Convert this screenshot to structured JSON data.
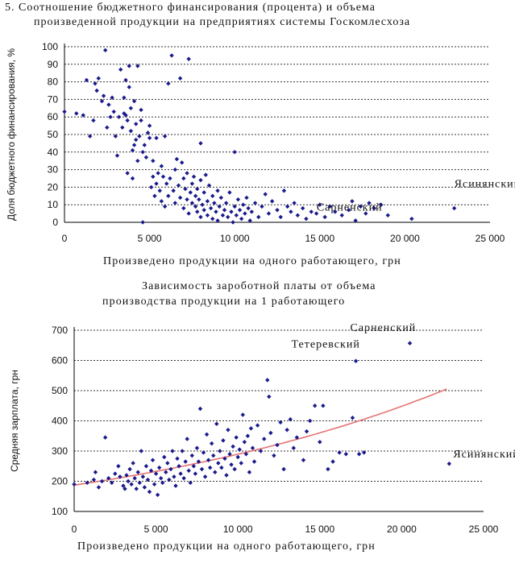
{
  "chart_data": [
    {
      "type": "scatter",
      "title_line1": "5. Соотношение  бюджетного финансирования (процента) и  объема",
      "title_line2": "произведенной продукции на предприятиях системы Госкомлесхоза",
      "xlabel": "Произведено продукции на одного работающего, грн",
      "ylabel": "Доля бюджетного финансирования, %",
      "xlim": [
        0,
        25000
      ],
      "ylim": [
        0,
        100
      ],
      "x_ticks": [
        0,
        5000,
        10000,
        15000,
        20000,
        25000
      ],
      "x_tick_labels": [
        "0",
        "5 000",
        "10 000",
        "15 000",
        "20 000",
        "25 000"
      ],
      "y_ticks": [
        0,
        10,
        20,
        30,
        40,
        50,
        60,
        70,
        80,
        90,
        100
      ],
      "y_tick_labels": [
        "0",
        "10",
        "20",
        "30",
        "40",
        "50",
        "60",
        "70",
        "80",
        "90",
        "100"
      ],
      "grid": "horizontal dashed",
      "marker_color": "#1a1a8c",
      "annotations": [
        {
          "text": "Ясинянский",
          "x": 22900,
          "y": 8
        },
        {
          "text": "Сарненский",
          "x": 20400,
          "y": 2
        }
      ],
      "points": [
        [
          0,
          63
        ],
        [
          700,
          62
        ],
        [
          1100,
          61
        ],
        [
          1300,
          81
        ],
        [
          1500,
          49
        ],
        [
          1700,
          58
        ],
        [
          1800,
          79
        ],
        [
          1900,
          75
        ],
        [
          2000,
          82
        ],
        [
          2200,
          69
        ],
        [
          2300,
          72
        ],
        [
          2400,
          98
        ],
        [
          2500,
          54
        ],
        [
          2600,
          67
        ],
        [
          2700,
          60
        ],
        [
          2800,
          71
        ],
        [
          2900,
          63
        ],
        [
          3000,
          49
        ],
        [
          3100,
          38
        ],
        [
          3200,
          60
        ],
        [
          3300,
          87
        ],
        [
          3400,
          54
        ],
        [
          3500,
          62
        ],
        [
          3500,
          71
        ],
        [
          3600,
          61
        ],
        [
          3600,
          81
        ],
        [
          3700,
          58
        ],
        [
          3700,
          28
        ],
        [
          3800,
          77
        ],
        [
          3800,
          89
        ],
        [
          3900,
          52
        ],
        [
          3900,
          65
        ],
        [
          4000,
          41
        ],
        [
          4000,
          25
        ],
        [
          4100,
          44
        ],
        [
          4100,
          69
        ],
        [
          4200,
          47
        ],
        [
          4200,
          56
        ],
        [
          4300,
          35
        ],
        [
          4300,
          89
        ],
        [
          4400,
          49
        ],
        [
          4500,
          58
        ],
        [
          4500,
          64
        ],
        [
          4600,
          40
        ],
        [
          4600,
          0
        ],
        [
          4700,
          44
        ],
        [
          4800,
          37
        ],
        [
          4900,
          51
        ],
        [
          5000,
          48
        ],
        [
          5000,
          55
        ],
        [
          5100,
          20
        ],
        [
          5200,
          26
        ],
        [
          5200,
          35
        ],
        [
          5300,
          15
        ],
        [
          5400,
          22
        ],
        [
          5400,
          48
        ],
        [
          5500,
          28
        ],
        [
          5600,
          18
        ],
        [
          5700,
          12
        ],
        [
          5700,
          32
        ],
        [
          5800,
          26
        ],
        [
          5900,
          9
        ],
        [
          5900,
          49
        ],
        [
          6000,
          22
        ],
        [
          6100,
          15
        ],
        [
          6100,
          79
        ],
        [
          6200,
          25
        ],
        [
          6300,
          95
        ],
        [
          6400,
          18
        ],
        [
          6500,
          11
        ],
        [
          6500,
          30
        ],
        [
          6600,
          36
        ],
        [
          6700,
          21
        ],
        [
          6800,
          14
        ],
        [
          6800,
          82
        ],
        [
          6900,
          34
        ],
        [
          7000,
          8
        ],
        [
          7000,
          25
        ],
        [
          7100,
          19
        ],
        [
          7200,
          13
        ],
        [
          7200,
          28
        ],
        [
          7300,
          5
        ],
        [
          7300,
          93
        ],
        [
          7400,
          17
        ],
        [
          7500,
          11
        ],
        [
          7500,
          22
        ],
        [
          7600,
          26
        ],
        [
          7700,
          9
        ],
        [
          7700,
          15
        ],
        [
          7800,
          19
        ],
        [
          7800,
          6
        ],
        [
          7900,
          13
        ],
        [
          8000,
          3
        ],
        [
          8000,
          24
        ],
        [
          8000,
          45
        ],
        [
          8100,
          10
        ],
        [
          8200,
          17
        ],
        [
          8200,
          7
        ],
        [
          8300,
          27
        ],
        [
          8400,
          12
        ],
        [
          8400,
          4
        ],
        [
          8500,
          21
        ],
        [
          8600,
          8
        ],
        [
          8700,
          15
        ],
        [
          8700,
          2
        ],
        [
          8800,
          11
        ],
        [
          8900,
          6
        ],
        [
          9000,
          18
        ],
        [
          9000,
          1
        ],
        [
          9100,
          9
        ],
        [
          9200,
          14
        ],
        [
          9300,
          4
        ],
        [
          9400,
          7
        ],
        [
          9500,
          11
        ],
        [
          9600,
          3
        ],
        [
          9700,
          17
        ],
        [
          9800,
          6
        ],
        [
          9900,
          0
        ],
        [
          10000,
          9
        ],
        [
          10000,
          40
        ],
        [
          10100,
          4
        ],
        [
          10200,
          13
        ],
        [
          10300,
          7
        ],
        [
          10400,
          2
        ],
        [
          10500,
          10
        ],
        [
          10600,
          5
        ],
        [
          10700,
          14
        ],
        [
          10800,
          8
        ],
        [
          10900,
          1
        ],
        [
          11000,
          6
        ],
        [
          11200,
          11
        ],
        [
          11400,
          3
        ],
        [
          11600,
          9
        ],
        [
          11800,
          16
        ],
        [
          12000,
          5
        ],
        [
          12200,
          12
        ],
        [
          12500,
          7
        ],
        [
          12700,
          3
        ],
        [
          12900,
          18
        ],
        [
          13100,
          9
        ],
        [
          13300,
          6
        ],
        [
          13500,
          11
        ],
        [
          13700,
          4
        ],
        [
          14000,
          8
        ],
        [
          14200,
          2
        ],
        [
          14500,
          6
        ],
        [
          14800,
          5
        ],
        [
          15000,
          10
        ],
        [
          15300,
          3
        ],
        [
          15600,
          9
        ],
        [
          15900,
          6
        ],
        [
          16300,
          4
        ],
        [
          16700,
          7
        ],
        [
          16900,
          12
        ],
        [
          17100,
          1
        ],
        [
          17400,
          9
        ],
        [
          17700,
          5
        ],
        [
          17900,
          11
        ],
        [
          18200,
          8
        ],
        [
          18600,
          10
        ],
        [
          19000,
          4
        ],
        [
          20400,
          2
        ],
        [
          22900,
          8
        ]
      ]
    },
    {
      "type": "scatter",
      "title_line1": "Зависимость зароботной платы от объема",
      "title_line2": "производства продукции  на 1 работающего",
      "xlabel": "Произведено продукции на одного работающего, грн",
      "ylabel": "Средняя зарплата, грн",
      "xlim": [
        0,
        25000
      ],
      "ylim": [
        100,
        700
      ],
      "x_ticks": [
        0,
        5000,
        10000,
        15000,
        20000,
        25000
      ],
      "x_tick_labels": [
        "0",
        "5 000",
        "10 000",
        "15 000",
        "20 000",
        "25 000"
      ],
      "y_ticks": [
        100,
        200,
        300,
        400,
        500,
        600,
        700
      ],
      "y_tick_labels": [
        "100",
        "200",
        "300",
        "400",
        "500",
        "600",
        "700"
      ],
      "grid": "horizontal dashed",
      "marker_color": "#1a1a8c",
      "trend_color": "#e57373",
      "trend": {
        "type": "exponential",
        "a": 187,
        "b": 4.37e-05,
        "x_range": [
          0,
          22900
        ]
      },
      "annotations": [
        {
          "text": "Сарненский",
          "x": 20500,
          "y": 657
        },
        {
          "text": "Тетеревский",
          "x": 17200,
          "y": 598
        },
        {
          "text": "Ясинянский",
          "x": 22900,
          "y": 258
        }
      ],
      "points": [
        [
          0,
          190
        ],
        [
          800,
          195
        ],
        [
          1200,
          205
        ],
        [
          1300,
          230
        ],
        [
          1500,
          180
        ],
        [
          1700,
          200
        ],
        [
          1900,
          345
        ],
        [
          2100,
          210
        ],
        [
          2300,
          195
        ],
        [
          2500,
          225
        ],
        [
          2700,
          250
        ],
        [
          2800,
          215
        ],
        [
          3000,
          185
        ],
        [
          3100,
          175
        ],
        [
          3200,
          220
        ],
        [
          3300,
          200
        ],
        [
          3400,
          240
        ],
        [
          3500,
          190
        ],
        [
          3600,
          260
        ],
        [
          3700,
          210
        ],
        [
          3800,
          175
        ],
        [
          3900,
          230
        ],
        [
          4000,
          195
        ],
        [
          4100,
          300
        ],
        [
          4200,
          215
        ],
        [
          4300,
          180
        ],
        [
          4400,
          250
        ],
        [
          4500,
          205
        ],
        [
          4600,
          165
        ],
        [
          4700,
          235
        ],
        [
          4800,
          270
        ],
        [
          4900,
          190
        ],
        [
          5000,
          225
        ],
        [
          5100,
          155
        ],
        [
          5200,
          245
        ],
        [
          5300,
          210
        ],
        [
          5400,
          195
        ],
        [
          5500,
          280
        ],
        [
          5600,
          230
        ],
        [
          5700,
          260
        ],
        [
          5800,
          205
        ],
        [
          5900,
          240
        ],
        [
          6000,
          300
        ],
        [
          6100,
          215
        ],
        [
          6200,
          185
        ],
        [
          6300,
          275
        ],
        [
          6400,
          250
        ],
        [
          6500,
          225
        ],
        [
          6600,
          300
        ],
        [
          6700,
          210
        ],
        [
          6800,
          265
        ],
        [
          6900,
          340
        ],
        [
          7000,
          235
        ],
        [
          7100,
          195
        ],
        [
          7200,
          285
        ],
        [
          7300,
          250
        ],
        [
          7400,
          225
        ],
        [
          7500,
          310
        ],
        [
          7600,
          265
        ],
        [
          7700,
          440
        ],
        [
          7800,
          240
        ],
        [
          7900,
          295
        ],
        [
          8000,
          215
        ],
        [
          8100,
          355
        ],
        [
          8200,
          270
        ],
        [
          8300,
          245
        ],
        [
          8400,
          325
        ],
        [
          8500,
          285
        ],
        [
          8600,
          230
        ],
        [
          8700,
          390
        ],
        [
          8800,
          260
        ],
        [
          8900,
          300
        ],
        [
          9000,
          245
        ],
        [
          9100,
          335
        ],
        [
          9200,
          275
        ],
        [
          9300,
          220
        ],
        [
          9400,
          370
        ],
        [
          9500,
          290
        ],
        [
          9600,
          255
        ],
        [
          9700,
          315
        ],
        [
          9800,
          240
        ],
        [
          9900,
          345
        ],
        [
          10000,
          280
        ],
        [
          10100,
          305
        ],
        [
          10200,
          260
        ],
        [
          10300,
          420
        ],
        [
          10400,
          330
        ],
        [
          10500,
          290
        ],
        [
          10600,
          350
        ],
        [
          10700,
          230
        ],
        [
          10800,
          375
        ],
        [
          10900,
          310
        ],
        [
          11000,
          265
        ],
        [
          11200,
          385
        ],
        [
          11400,
          300
        ],
        [
          11600,
          340
        ],
        [
          11800,
          535
        ],
        [
          11900,
          480
        ],
        [
          12000,
          360
        ],
        [
          12200,
          285
        ],
        [
          12400,
          320
        ],
        [
          12600,
          395
        ],
        [
          12800,
          240
        ],
        [
          13000,
          370
        ],
        [
          13200,
          405
        ],
        [
          13400,
          310
        ],
        [
          13600,
          345
        ],
        [
          14000,
          270
        ],
        [
          14200,
          365
        ],
        [
          14400,
          400
        ],
        [
          14700,
          450
        ],
        [
          15000,
          330
        ],
        [
          15200,
          450
        ],
        [
          15500,
          240
        ],
        [
          15800,
          265
        ],
        [
          16200,
          295
        ],
        [
          16600,
          290
        ],
        [
          17000,
          410
        ],
        [
          17200,
          598
        ],
        [
          17400,
          290
        ],
        [
          17700,
          295
        ],
        [
          20500,
          657
        ],
        [
          22900,
          258
        ]
      ]
    }
  ]
}
